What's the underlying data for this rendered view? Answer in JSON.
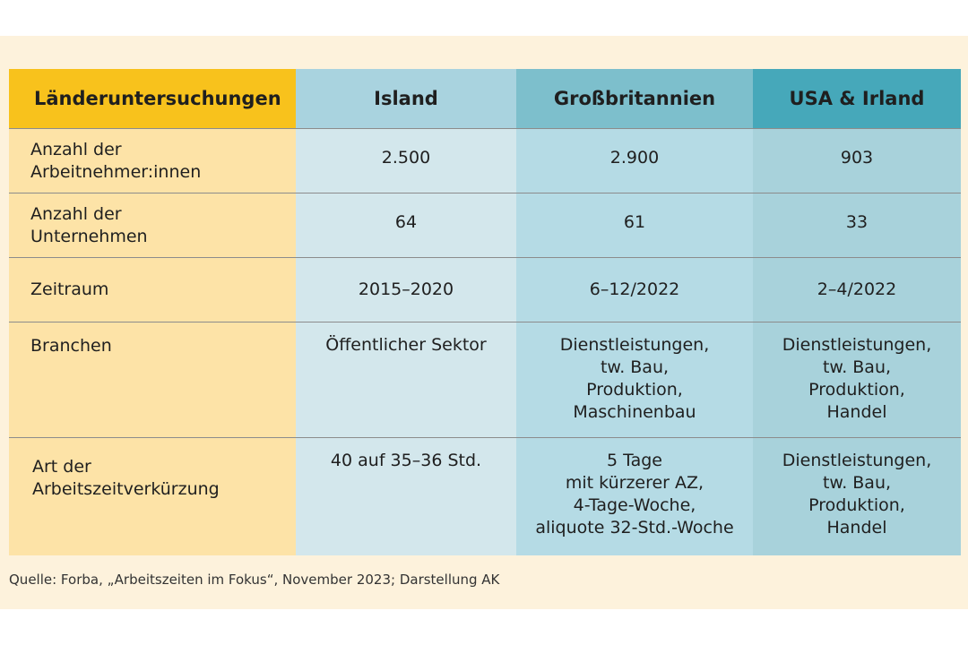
{
  "table": {
    "headers": [
      "Länderuntersuchungen",
      "Island",
      "Großbritannien",
      "USA & Irland"
    ],
    "rows": [
      {
        "label": [
          "Anzahl der",
          "Arbeitnehmer:innen"
        ],
        "values": [
          [
            "2.500"
          ],
          [
            "2.900"
          ],
          [
            "903"
          ]
        ]
      },
      {
        "label": [
          "Anzahl der",
          "Unternehmen"
        ],
        "values": [
          [
            "64"
          ],
          [
            "61"
          ],
          [
            "33"
          ]
        ]
      },
      {
        "label": [
          "Zeitraum"
        ],
        "values": [
          [
            "2015–2020"
          ],
          [
            "6–12/2022"
          ],
          [
            "2–4/2022"
          ]
        ]
      },
      {
        "label": [
          "Branchen"
        ],
        "values": [
          [
            "Öffentlicher Sektor"
          ],
          [
            "Dienstleistungen,",
            "tw. Bau,",
            "Produktion,",
            "Maschinenbau"
          ],
          [
            "Dienstleistungen,",
            "tw. Bau,",
            "Produktion,",
            "Handel"
          ]
        ]
      },
      {
        "label": [
          "Art der",
          "Arbeitszeitverkürzung"
        ],
        "values": [
          [
            "40 auf 35–36 Std."
          ],
          [
            "5 Tage",
            "mit kürzerer AZ,",
            "4-Tage-Woche,",
            "aliquote 32-Std.-Woche"
          ],
          [
            "Dienstleistungen,",
            "tw. Bau,",
            "Produktion,",
            "Handel"
          ]
        ]
      }
    ]
  },
  "source": "Quelle: Forba, „Arbeitszeiten im Fokus“, November 2023; Darstellung AK",
  "colors": {
    "header_label": "#f8c21c",
    "header_island": "#a9d3df",
    "header_gb": "#7dbfcc",
    "header_usa": "#46a8ba",
    "label_column": "#fde3a7",
    "background": "#fdf2dc"
  }
}
